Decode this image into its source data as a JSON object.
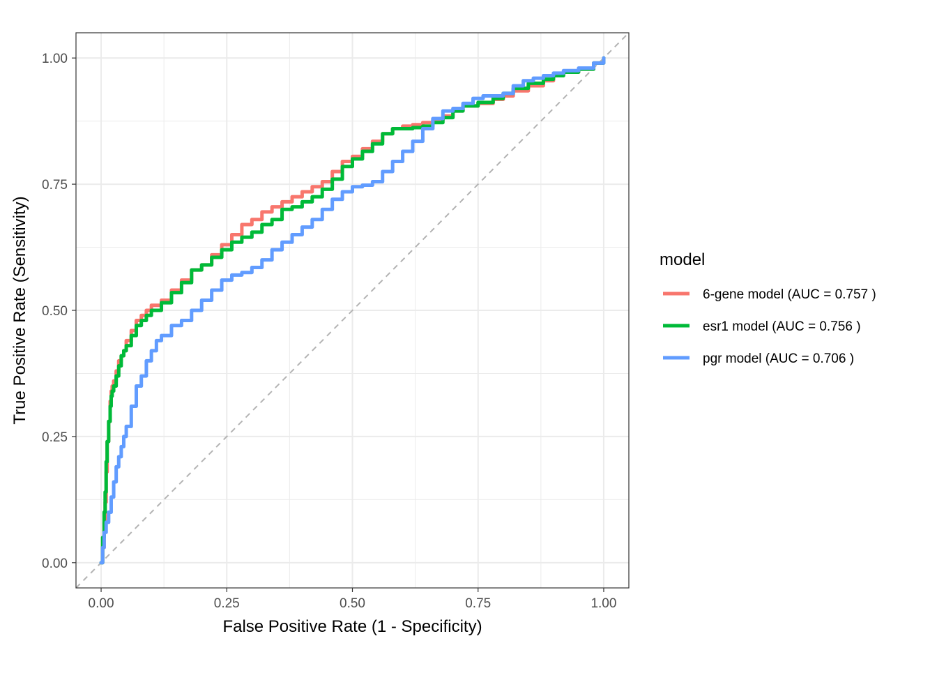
{
  "chart_data": {
    "type": "line",
    "title": "",
    "xlabel": "False Positive Rate (1 - Specificity)",
    "ylabel": "True Positive Rate (Sensitivity)",
    "xlim": [
      -0.05,
      1.05
    ],
    "ylim": [
      -0.05,
      1.05
    ],
    "x_ticks": [
      "0.00",
      "0.25",
      "0.50",
      "0.75",
      "1.00"
    ],
    "y_ticks": [
      "0.00",
      "0.25",
      "0.50",
      "0.75",
      "1.00"
    ],
    "grid": true,
    "legend_position": "right",
    "legend_title": "model",
    "reference_line": {
      "x": [
        -0.05,
        1.05
      ],
      "y": [
        -0.05,
        1.05
      ],
      "style": "dashed",
      "color": "#b3b3b3"
    },
    "series": [
      {
        "name": "6-gene model (AUC = 0.757 )",
        "color": "#F8766D",
        "x": [
          0.0,
          0.003,
          0.006,
          0.008,
          0.01,
          0.012,
          0.015,
          0.018,
          0.02,
          0.022,
          0.025,
          0.03,
          0.035,
          0.04,
          0.045,
          0.05,
          0.06,
          0.07,
          0.08,
          0.09,
          0.1,
          0.12,
          0.14,
          0.16,
          0.18,
          0.2,
          0.22,
          0.24,
          0.26,
          0.28,
          0.3,
          0.32,
          0.34,
          0.36,
          0.38,
          0.4,
          0.42,
          0.44,
          0.46,
          0.48,
          0.5,
          0.52,
          0.54,
          0.56,
          0.58,
          0.6,
          0.62,
          0.64,
          0.66,
          0.68,
          0.7,
          0.72,
          0.75,
          0.78,
          0.8,
          0.82,
          0.85,
          0.88,
          0.9,
          0.92,
          0.95,
          0.98,
          1.0
        ],
        "y": [
          0.0,
          0.03,
          0.08,
          0.12,
          0.18,
          0.24,
          0.28,
          0.32,
          0.34,
          0.35,
          0.36,
          0.38,
          0.4,
          0.41,
          0.42,
          0.44,
          0.46,
          0.48,
          0.49,
          0.5,
          0.51,
          0.52,
          0.54,
          0.56,
          0.58,
          0.59,
          0.61,
          0.63,
          0.65,
          0.67,
          0.68,
          0.695,
          0.705,
          0.715,
          0.725,
          0.735,
          0.745,
          0.755,
          0.775,
          0.795,
          0.805,
          0.82,
          0.835,
          0.85,
          0.86,
          0.865,
          0.868,
          0.872,
          0.877,
          0.885,
          0.895,
          0.905,
          0.91,
          0.918,
          0.925,
          0.935,
          0.945,
          0.955,
          0.965,
          0.972,
          0.978,
          0.99,
          1.0
        ]
      },
      {
        "name": "esr1 model (AUC = 0.756 )",
        "color": "#00BA38",
        "x": [
          0.0,
          0.003,
          0.006,
          0.008,
          0.01,
          0.012,
          0.015,
          0.018,
          0.02,
          0.022,
          0.025,
          0.03,
          0.035,
          0.04,
          0.045,
          0.05,
          0.06,
          0.07,
          0.08,
          0.09,
          0.1,
          0.12,
          0.14,
          0.16,
          0.18,
          0.2,
          0.22,
          0.24,
          0.26,
          0.28,
          0.3,
          0.32,
          0.34,
          0.36,
          0.38,
          0.4,
          0.42,
          0.44,
          0.46,
          0.48,
          0.5,
          0.52,
          0.54,
          0.56,
          0.58,
          0.6,
          0.62,
          0.64,
          0.66,
          0.68,
          0.7,
          0.72,
          0.75,
          0.78,
          0.8,
          0.82,
          0.85,
          0.88,
          0.9,
          0.92,
          0.95,
          0.98,
          1.0
        ],
        "y": [
          0.0,
          0.05,
          0.1,
          0.14,
          0.2,
          0.24,
          0.28,
          0.31,
          0.33,
          0.34,
          0.35,
          0.37,
          0.39,
          0.41,
          0.42,
          0.43,
          0.45,
          0.47,
          0.48,
          0.49,
          0.5,
          0.515,
          0.535,
          0.555,
          0.58,
          0.59,
          0.605,
          0.62,
          0.635,
          0.645,
          0.655,
          0.67,
          0.68,
          0.7,
          0.705,
          0.715,
          0.725,
          0.74,
          0.76,
          0.785,
          0.8,
          0.815,
          0.83,
          0.85,
          0.86,
          0.86,
          0.862,
          0.865,
          0.872,
          0.882,
          0.895,
          0.905,
          0.912,
          0.92,
          0.93,
          0.94,
          0.95,
          0.958,
          0.965,
          0.972,
          0.978,
          0.99,
          1.0
        ]
      },
      {
        "name": "pgr model (AUC = 0.706 )",
        "color": "#619CFF",
        "x": [
          0.0,
          0.003,
          0.006,
          0.01,
          0.015,
          0.02,
          0.025,
          0.03,
          0.035,
          0.04,
          0.045,
          0.05,
          0.06,
          0.07,
          0.08,
          0.09,
          0.1,
          0.11,
          0.12,
          0.14,
          0.16,
          0.18,
          0.2,
          0.22,
          0.24,
          0.26,
          0.28,
          0.3,
          0.32,
          0.34,
          0.36,
          0.38,
          0.4,
          0.42,
          0.44,
          0.46,
          0.48,
          0.5,
          0.52,
          0.54,
          0.56,
          0.58,
          0.6,
          0.62,
          0.64,
          0.66,
          0.68,
          0.7,
          0.72,
          0.74,
          0.76,
          0.8,
          0.82,
          0.84,
          0.86,
          0.88,
          0.9,
          0.92,
          0.95,
          0.98,
          1.0
        ],
        "y": [
          0.0,
          0.03,
          0.06,
          0.08,
          0.1,
          0.13,
          0.16,
          0.19,
          0.21,
          0.23,
          0.25,
          0.27,
          0.31,
          0.35,
          0.37,
          0.4,
          0.42,
          0.44,
          0.45,
          0.47,
          0.48,
          0.5,
          0.52,
          0.54,
          0.56,
          0.57,
          0.575,
          0.585,
          0.6,
          0.62,
          0.635,
          0.65,
          0.665,
          0.68,
          0.7,
          0.72,
          0.735,
          0.745,
          0.748,
          0.755,
          0.775,
          0.795,
          0.815,
          0.835,
          0.86,
          0.88,
          0.895,
          0.9,
          0.91,
          0.92,
          0.925,
          0.93,
          0.945,
          0.955,
          0.96,
          0.965,
          0.97,
          0.975,
          0.98,
          0.99,
          1.0
        ]
      }
    ]
  }
}
